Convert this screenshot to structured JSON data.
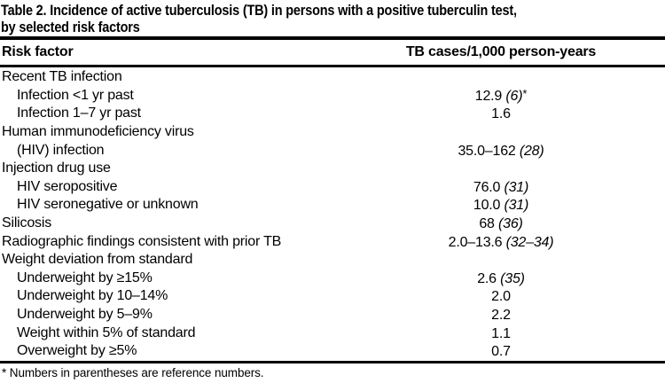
{
  "colors": {
    "text": "#000000",
    "background": "#ffffff",
    "rule": "#000000"
  },
  "table": {
    "title_line1": "Table 2. Incidence of active tuberculosis (TB) in persons with a positive tuberculin test,",
    "title_line2": "by selected risk factors",
    "columns": [
      "Risk factor",
      "TB cases/1,000 person-years"
    ],
    "rows": [
      {
        "label": "Recent TB infection"
      },
      {
        "label": "Infection <1 yr past",
        "value": "12.9",
        "ref": "(6)",
        "suffix": "*"
      },
      {
        "label": "Infection 1–7 yr past",
        "value": "1.6"
      },
      {
        "label": "Human immunodeficiency virus"
      },
      {
        "label": "(HIV) infection",
        "value": "35.0–162",
        "ref": "(28)"
      },
      {
        "label": "Injection drug use"
      },
      {
        "label": "HIV seropositive",
        "value": "76.0",
        "ref": "(31)"
      },
      {
        "label": "HIV seronegative or unknown",
        "value": "10.0",
        "ref": "(31)"
      },
      {
        "label": "Silicosis",
        "value": "68",
        "ref": "(36)"
      },
      {
        "label": "Radiographic findings consistent with prior TB",
        "value": "2.0–13.6",
        "ref": "(32–34)"
      },
      {
        "label": "Weight deviation from standard"
      },
      {
        "label": "Underweight by ≥15%",
        "value": "2.6",
        "ref": "(35)"
      },
      {
        "label": "Underweight by 10–14%",
        "value": "2.0"
      },
      {
        "label": "Underweight by 5–9%",
        "value": "2.2"
      },
      {
        "label": "Weight within 5% of standard",
        "value": "1.1"
      },
      {
        "label": "Overweight by ≥5%",
        "value": "0.7"
      }
    ],
    "footnote": "* Numbers in parentheses are reference numbers."
  }
}
